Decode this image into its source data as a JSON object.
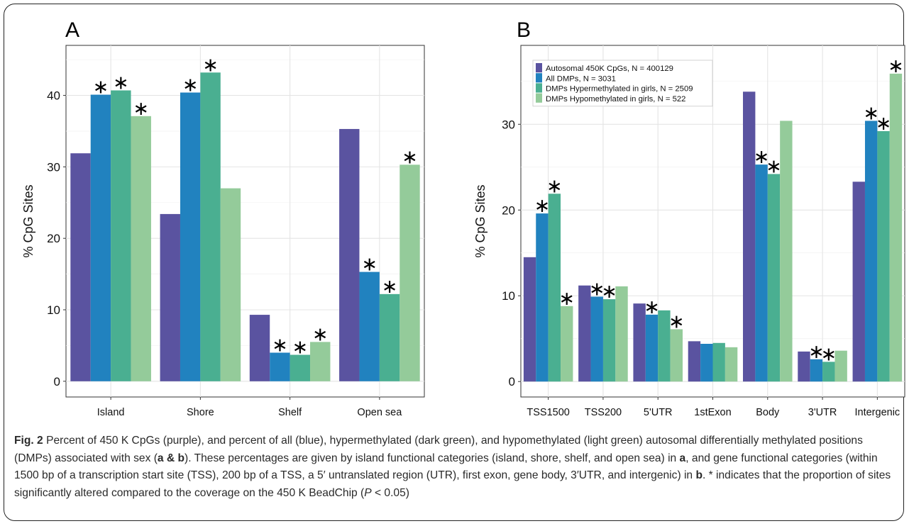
{
  "charts": [
    {
      "panel_label": "A",
      "chart_data": {
        "type": "bar",
        "categories": [
          "Island",
          "Shore",
          "Shelf",
          "Open sea"
        ],
        "series": [
          {
            "name": "Autosomal 450K CpGs, N = 400129",
            "values": [
              31.9,
              23.4,
              9.3,
              35.3
            ],
            "sig": [
              false,
              false,
              false,
              false
            ]
          },
          {
            "name": "All DMPs, N = 3031",
            "values": [
              40.1,
              40.4,
              4.0,
              15.3
            ],
            "sig": [
              true,
              true,
              true,
              true
            ]
          },
          {
            "name": "DMPs Hypermethylated in girls, N = 2509",
            "values": [
              40.7,
              43.2,
              3.7,
              12.2
            ],
            "sig": [
              true,
              true,
              true,
              true
            ]
          },
          {
            "name": "DMPs Hypomethylated in girls, N = 522",
            "values": [
              37.1,
              27.0,
              5.5,
              30.3
            ],
            "sig": [
              true,
              false,
              true,
              true
            ]
          }
        ],
        "xlabel": "",
        "ylabel": "% CpG Sites",
        "yticks": [
          0,
          10,
          20,
          30,
          40
        ],
        "ylim": [
          -2.2,
          47
        ],
        "grid": true,
        "legend": false
      }
    },
    {
      "panel_label": "B",
      "chart_data": {
        "type": "bar",
        "categories": [
          "TSS1500",
          "TSS200",
          "5'UTR",
          "1stExon",
          "Body",
          "3'UTR",
          "Intergenic"
        ],
        "series": [
          {
            "name": "Autosomal 450K CpGs, N = 400129",
            "values": [
              14.5,
              11.2,
              9.1,
              4.7,
              33.8,
              3.5,
              23.3
            ],
            "sig": [
              false,
              false,
              false,
              false,
              false,
              false,
              false
            ]
          },
          {
            "name": "All DMPs, N = 3031",
            "values": [
              19.6,
              9.9,
              7.8,
              4.4,
              25.3,
              2.6,
              30.4
            ],
            "sig": [
              true,
              true,
              true,
              false,
              true,
              true,
              true
            ]
          },
          {
            "name": "DMPs Hypermethylated in girls, N = 2509",
            "values": [
              21.9,
              9.6,
              8.3,
              4.5,
              24.2,
              2.3,
              29.2
            ],
            "sig": [
              true,
              true,
              false,
              false,
              true,
              true,
              true
            ]
          },
          {
            "name": "DMPs Hypomethylated in girls, N = 522",
            "values": [
              8.8,
              11.1,
              6.1,
              4.0,
              30.4,
              3.6,
              35.9
            ],
            "sig": [
              true,
              false,
              true,
              false,
              false,
              false,
              true
            ]
          }
        ],
        "xlabel": "",
        "ylabel": "% CpG Sites",
        "yticks": [
          0,
          10,
          20,
          30
        ],
        "ylim": [
          -1.8,
          39.2
        ],
        "grid": true,
        "legend": true,
        "legend_position": "top-left"
      }
    }
  ],
  "colors": [
    "#5a53a0",
    "#2182bf",
    "#4aaf91",
    "#94cb9a"
  ],
  "sig_marker": "∗",
  "caption": {
    "fig_label": "Fig. 2",
    "text_1": " Percent of 450 K CpGs (purple), and percent of all (blue), hypermethylated (dark green), and hypomethylated (light green) autosomal differentially methylated positions (DMPs) associated with sex (",
    "ref_ab": "a & b",
    "text_2": "). These percentages are given by island functional categories (island, shore, shelf, and open sea) in ",
    "ref_a": "a",
    "text_3": ", and gene functional categories (within 1500 bp of a transcription start site (TSS), 200 bp of a TSS, a 5′ untranslated region (UTR), first exon, gene body, 3′UTR, and intergenic) in ",
    "ref_b": "b",
    "text_4": ". * indicates that the proportion of sites significantly altered compared to the coverage on the 450 K BeadChip (",
    "p_symbol": "P",
    "text_5": " < 0.05)"
  }
}
